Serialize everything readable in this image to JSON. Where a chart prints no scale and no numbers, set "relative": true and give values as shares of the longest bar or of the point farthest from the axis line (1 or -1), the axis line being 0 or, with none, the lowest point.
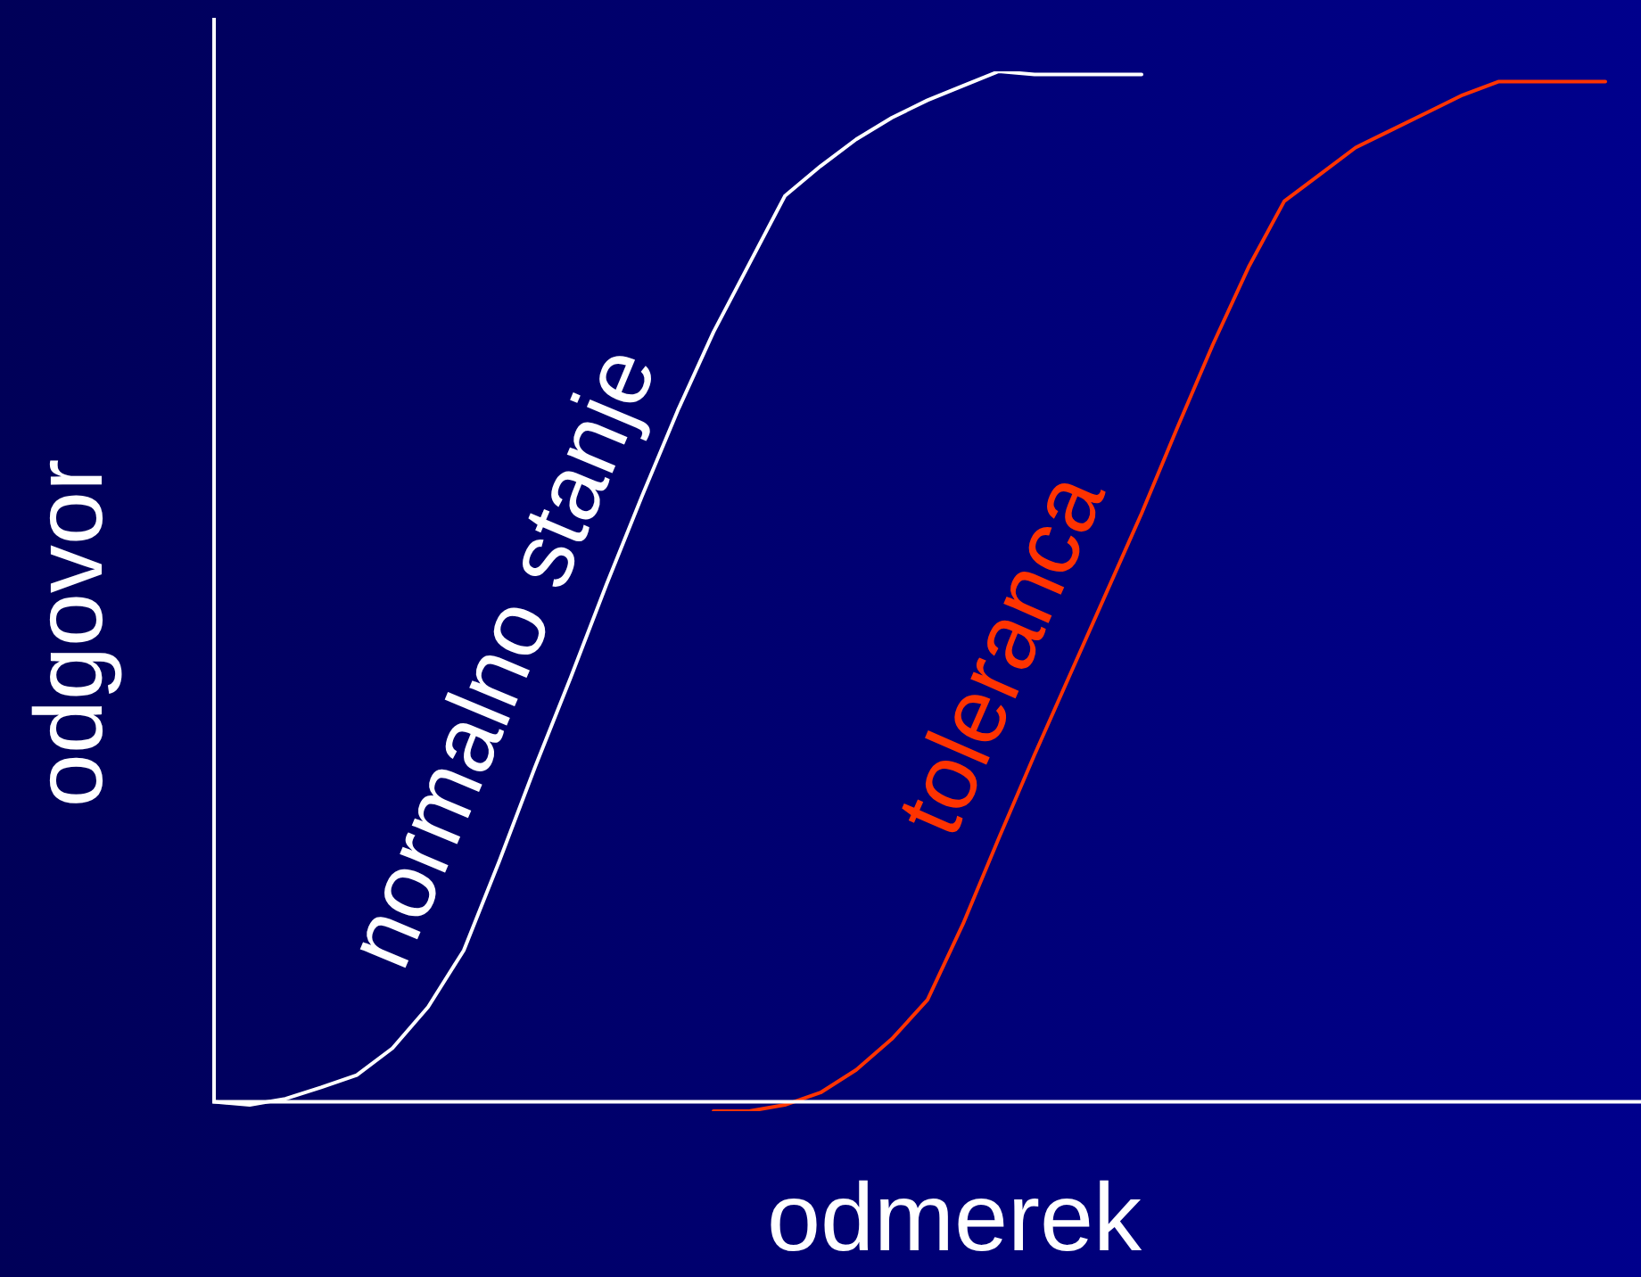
{
  "chart_data": {
    "type": "line",
    "relative": true,
    "xlabel": "odmerek",
    "ylabel": "odgovor",
    "legend": false,
    "grid": false,
    "marker": "none",
    "categories": [
      null,
      null,
      null,
      null,
      null,
      null,
      null,
      null,
      null,
      null,
      null,
      null,
      null,
      null,
      null,
      null,
      null,
      null,
      null,
      null,
      null,
      null,
      null,
      null,
      null,
      null,
      null,
      null,
      null,
      null,
      null,
      null,
      null,
      null,
      null,
      null,
      null,
      null,
      null,
      null,
      null
    ],
    "series": [
      {
        "name": "normalno stanje",
        "color": "#ffffff",
        "values": [
          0,
          -0.003,
          0.003,
          0.014,
          0.026,
          0.052,
          0.092,
          0.147,
          0.234,
          0.325,
          0.412,
          0.502,
          0.588,
          0.671,
          0.747,
          0.813,
          0.879,
          0.908,
          0.934,
          0.955,
          0.972,
          0.986,
          1,
          0.997,
          0.997,
          0.997,
          0.997,
          null,
          null,
          null,
          null,
          null,
          null,
          null,
          null,
          null,
          null,
          null,
          null,
          null,
          null
        ]
      },
      {
        "name": "toleranca",
        "color": "#ff3300",
        "values": [
          null,
          null,
          null,
          null,
          null,
          null,
          null,
          null,
          null,
          null,
          null,
          null,
          null,
          null,
          -0.009,
          -0.009,
          -0.003,
          0.009,
          0.031,
          0.061,
          0.099,
          0.173,
          0.256,
          0.337,
          0.415,
          0.493,
          0.571,
          0.654,
          0.735,
          0.81,
          0.874,
          0.9,
          0.926,
          0.943,
          0.96,
          0.977,
          0.99,
          0.99,
          0.99,
          0.99,
          null
        ]
      }
    ]
  }
}
